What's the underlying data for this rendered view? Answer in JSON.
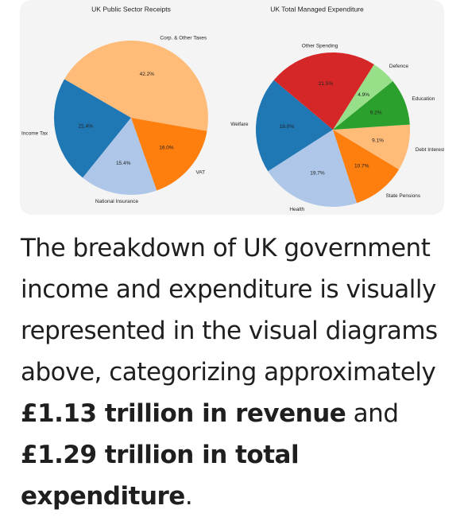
{
  "chart_data": [
    {
      "type": "pie",
      "title": "UK Public Sector Receipts",
      "startangle": 150,
      "categories": [
        "Income Tax",
        "National Insurance",
        "VAT",
        "Corp. & Other Taxes"
      ],
      "values": [
        21.4,
        15.4,
        16.0,
        42.2
      ],
      "value_labels": [
        "21.4%",
        "15.4%",
        "16.0%",
        "42.2%"
      ],
      "colors": [
        "#1f77b4",
        "#aec7e8",
        "#ff7f0e",
        "#ffbb78"
      ]
    },
    {
      "type": "pie",
      "title": "UK Total Managed Expenditure",
      "startangle": 140,
      "categories": [
        "Welfare",
        "Health",
        "State Pensions",
        "Debt Interest",
        "Education",
        "Defence",
        "Other Spending"
      ],
      "values": [
        19.0,
        19.7,
        10.7,
        9.1,
        9.2,
        4.9,
        21.5
      ],
      "value_labels": [
        "19.0%",
        "19.7%",
        "10.7%",
        "9.1%",
        "9.2%",
        "4.9%",
        "21.5%"
      ],
      "colors": [
        "#1f77b4",
        "#aec7e8",
        "#ff7f0e",
        "#ffbb78",
        "#2ca02c",
        "#98df8a",
        "#d62728"
      ]
    }
  ],
  "paragraph": {
    "parts": [
      {
        "text": "The breakdown of UK government income and expenditure is visually represented in the visual diagrams above, categorizing approximately ",
        "bold": false
      },
      {
        "text": "£1.13 trillion in revenue",
        "bold": true
      },
      {
        "text": " and ",
        "bold": false
      },
      {
        "text": "£1.29 trillion in total expenditure",
        "bold": true
      },
      {
        "text": ".",
        "bold": false
      }
    ]
  }
}
